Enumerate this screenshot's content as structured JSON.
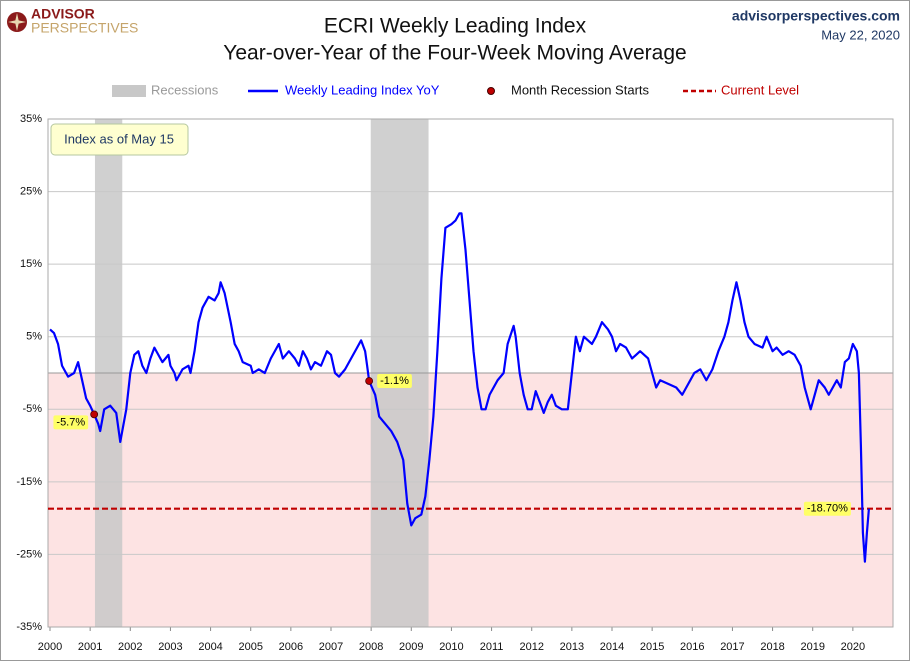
{
  "header": {
    "logo_top": "ADVISOR",
    "logo_bottom": "PERSPECTIVES",
    "site": "advisorperspectives.com",
    "date": "May 22, 2020"
  },
  "chart_data": {
    "type": "line",
    "title": "ECRI Weekly Leading Index",
    "subtitle": "Year-over-Year of the Four-Week Moving Average",
    "annotation": "Index as of May 15",
    "x": [
      2000,
      2000.1,
      2000.2,
      2000.3,
      2000.45,
      2000.6,
      2000.7,
      2000.8,
      2000.9,
      2001,
      2001.1,
      2001.2,
      2001.25,
      2001.35,
      2001.5,
      2001.65,
      2001.75,
      2001.9,
      2002,
      2002.1,
      2002.2,
      2002.3,
      2002.4,
      2002.5,
      2002.6,
      2002.7,
      2002.8,
      2002.95,
      2003,
      2003.1,
      2003.15,
      2003.3,
      2003.45,
      2003.5,
      2003.6,
      2003.7,
      2003.8,
      2003.95,
      2004.1,
      2004.2,
      2004.25,
      2004.35,
      2004.5,
      2004.6,
      2004.7,
      2004.8,
      2005,
      2005.05,
      2005.2,
      2005.35,
      2005.5,
      2005.6,
      2005.7,
      2005.8,
      2005.95,
      2006.1,
      2006.2,
      2006.3,
      2006.4,
      2006.5,
      2006.6,
      2006.75,
      2006.9,
      2007,
      2007.1,
      2007.2,
      2007.35,
      2007.5,
      2007.65,
      2007.75,
      2007.85,
      2007.9,
      2007.95,
      2008.1,
      2008.2,
      2008.35,
      2008.5,
      2008.65,
      2008.8,
      2008.9,
      2009,
      2009.1,
      2009.25,
      2009.35,
      2009.45,
      2009.55,
      2009.65,
      2009.75,
      2009.85,
      2010,
      2010.1,
      2010.2,
      2010.25,
      2010.35,
      2010.45,
      2010.55,
      2010.65,
      2010.75,
      2010.85,
      2010.95,
      2011.05,
      2011.15,
      2011.3,
      2011.4,
      2011.55,
      2011.6,
      2011.7,
      2011.8,
      2011.9,
      2012,
      2012.1,
      2012.2,
      2012.3,
      2012.4,
      2012.5,
      2012.6,
      2012.75,
      2012.9,
      2013,
      2013.1,
      2013.2,
      2013.3,
      2013.5,
      2013.6,
      2013.75,
      2013.9,
      2014,
      2014.1,
      2014.2,
      2014.35,
      2014.5,
      2014.7,
      2014.9,
      2015,
      2015.1,
      2015.2,
      2015.4,
      2015.6,
      2015.75,
      2015.9,
      2016.05,
      2016.2,
      2016.35,
      2016.5,
      2016.65,
      2016.8,
      2016.9,
      2017,
      2017.1,
      2017.2,
      2017.3,
      2017.4,
      2017.55,
      2017.75,
      2017.85,
      2018,
      2018.1,
      2018.25,
      2018.4,
      2018.55,
      2018.7,
      2018.8,
      2018.95,
      2019.05,
      2019.15,
      2019.3,
      2019.4,
      2019.5,
      2019.6,
      2019.7,
      2019.8,
      2019.9,
      2020,
      2020.1,
      2020.15,
      2020.2,
      2020.25,
      2020.3,
      2020.35,
      2020.4
    ],
    "series": [
      {
        "name": "Weekly Leading Index YoY",
        "color": "#0000ff",
        "values": [
          6,
          5.5,
          4,
          1,
          -0.5,
          0,
          1.5,
          -1,
          -3.5,
          -4.5,
          -5.7,
          -7,
          -8,
          -5,
          -4.5,
          -5.5,
          -9.5,
          -5,
          0,
          2.5,
          3,
          1,
          0,
          2,
          3.5,
          2.5,
          1.5,
          2.5,
          1,
          0,
          -1,
          0.5,
          1,
          0,
          3,
          7,
          9,
          10.5,
          10,
          11,
          12.5,
          11,
          7,
          4,
          3,
          1.5,
          1,
          0,
          0.5,
          0,
          2,
          3,
          4,
          2,
          3,
          2,
          1,
          3,
          2,
          0.5,
          1.5,
          1,
          3,
          2.5,
          0,
          -0.5,
          0.5,
          2,
          3.5,
          4.5,
          3,
          1,
          -1.1,
          -3,
          -6,
          -7,
          -8,
          -9.5,
          -12,
          -18,
          -21,
          -20,
          -19.5,
          -17,
          -12,
          -6,
          3,
          13,
          20,
          20.5,
          21,
          22,
          22,
          17,
          10,
          3,
          -2,
          -5,
          -5,
          -3,
          -2,
          -1,
          0,
          4,
          6.5,
          5,
          0,
          -3,
          -5,
          -5,
          -2.5,
          -4,
          -5.5,
          -4,
          -3,
          -4.5,
          -5,
          -5,
          0,
          5,
          3,
          5,
          4,
          5,
          7,
          6,
          5,
          3,
          4,
          3.5,
          2,
          3,
          2,
          0,
          -2,
          -1,
          -1.5,
          -2,
          -3,
          -1.5,
          0,
          0.5,
          -1,
          0.5,
          3,
          5,
          7,
          10,
          12.5,
          10,
          7,
          5,
          4,
          3.5,
          5,
          3,
          3.5,
          2.5,
          3,
          2.5,
          1,
          -2,
          -5,
          -3,
          -1,
          -2,
          -3,
          -2,
          -1,
          -2,
          1.5,
          2,
          4,
          3,
          0,
          -10,
          -22,
          -26,
          -22,
          -18.7
        ]
      }
    ],
    "recessions": {
      "name": "Recessions",
      "color": "#c8c8c8",
      "periods": [
        [
          2001.12,
          2001.8
        ],
        [
          2007.99,
          2009.43
        ]
      ]
    },
    "recession_starts": {
      "name": "Month Recession Starts",
      "color": "#c00000",
      "x": [
        2001.1,
        2007.95
      ],
      "values": [
        -5.7,
        -1.1
      ],
      "value_labels": [
        "-5.7%",
        "-1.1%"
      ]
    },
    "current_level": {
      "name": "Current Level",
      "color": "#c00000",
      "value": -18.7,
      "value_label": "-18.70%"
    },
    "negative_shading": "#fde3e3",
    "xlim": [
      1999.95,
      2021
    ],
    "ylim": [
      -35,
      35
    ],
    "xticks": [
      2000,
      2001,
      2002,
      2003,
      2004,
      2005,
      2006,
      2007,
      2008,
      2009,
      2010,
      2011,
      2012,
      2013,
      2014,
      2015,
      2016,
      2017,
      2018,
      2019,
      2020
    ],
    "yticks": [
      {
        "value": -35,
        "label": "-35%"
      },
      {
        "value": -25,
        "label": "-25%"
      },
      {
        "value": -15,
        "label": "-15%"
      },
      {
        "value": -5,
        "label": "-5%"
      },
      {
        "value": 5,
        "label": "5%"
      },
      {
        "value": 15,
        "label": "15%"
      },
      {
        "value": 25,
        "label": "25%"
      },
      {
        "value": 35,
        "label": "35%"
      }
    ],
    "grid": true
  }
}
